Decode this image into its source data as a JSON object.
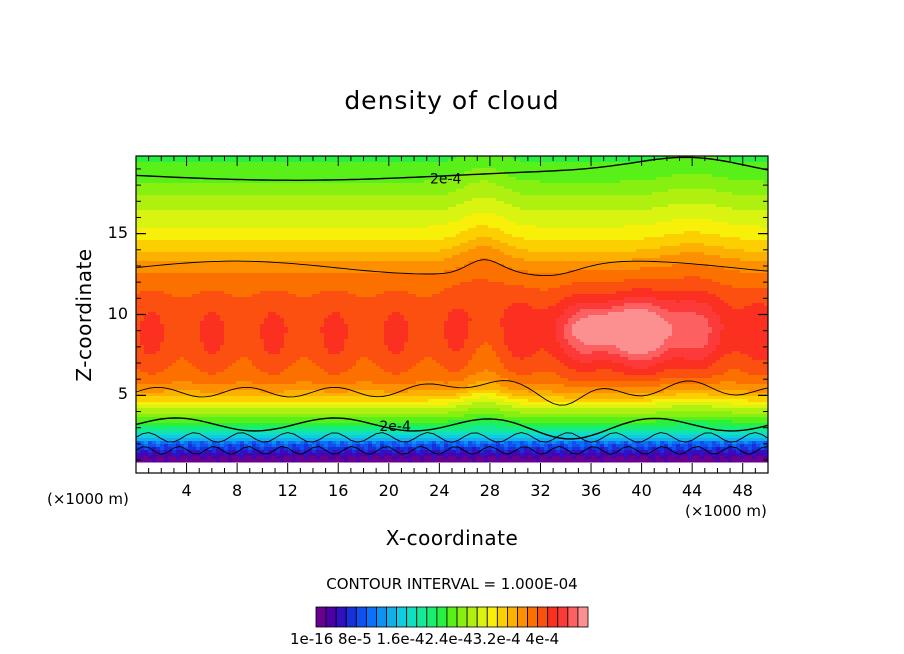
{
  "chart_data": {
    "type": "heatmap",
    "title": "density of cloud",
    "xlabel": "X-coordinate",
    "ylabel": "Z-coordinate",
    "x_unit_left": "(×1000 m)",
    "x_unit_right": "(×1000 m)",
    "xlim": [
      0,
      50
    ],
    "ylim": [
      0.2,
      19.8
    ],
    "xticks": [
      4,
      8,
      12,
      16,
      20,
      24,
      28,
      32,
      36,
      40,
      44,
      48
    ],
    "yticks": [
      5,
      10,
      15
    ],
    "contour_interval_text": "CONTOUR INTERVAL = 1.000E-04",
    "contour_labels": [
      {
        "text": "2e-4",
        "x": 24.5,
        "z": 18.4
      },
      {
        "text": "2e-4",
        "x": 20.5,
        "z": 3.1
      }
    ],
    "colorbar_labels_text": "1e-16 8e-5 1.6e-42.4e-43.2e-4 4e-4",
    "colorbar_colors": [
      "#6a0090",
      "#4b00a8",
      "#3010c0",
      "#1830d8",
      "#1050ee",
      "#0c70f8",
      "#1090f0",
      "#10b0e8",
      "#10cce0",
      "#10e0c0",
      "#14e89a",
      "#18ee70",
      "#28f040",
      "#58f018",
      "#88f010",
      "#b0f010",
      "#d8f410",
      "#f8f008",
      "#fcd000",
      "#fcb000",
      "#fc9000",
      "#fc7000",
      "#fc5010",
      "#fc3020",
      "#fc3a3a",
      "#fc6060",
      "#fc9090"
    ],
    "profile": [
      {
        "z": 0.3,
        "density_e4": 0.0
      },
      {
        "z": 1.0,
        "density_e4": 0.2
      },
      {
        "z": 1.6,
        "density_e4": 0.6
      },
      {
        "z": 2.2,
        "density_e4": 1.05
      },
      {
        "z": 2.8,
        "density_e4": 1.55
      },
      {
        "z": 3.5,
        "density_e4": 2.0
      },
      {
        "z": 4.3,
        "density_e4": 2.4
      },
      {
        "z": 5.0,
        "density_e4": 2.85
      },
      {
        "z": 6.0,
        "density_e4": 3.15
      },
      {
        "z": 7.5,
        "density_e4": 3.3
      },
      {
        "z": 9.0,
        "density_e4": 3.35
      },
      {
        "z": 10.5,
        "density_e4": 3.3
      },
      {
        "z": 12.0,
        "density_e4": 3.15
      },
      {
        "z": 13.0,
        "density_e4": 3.0
      },
      {
        "z": 14.0,
        "density_e4": 2.75
      },
      {
        "z": 15.0,
        "density_e4": 2.55
      },
      {
        "z": 16.0,
        "density_e4": 2.4
      },
      {
        "z": 17.0,
        "density_e4": 2.25
      },
      {
        "z": 18.5,
        "density_e4": 2.0
      },
      {
        "z": 19.8,
        "density_e4": 1.85
      }
    ]
  }
}
